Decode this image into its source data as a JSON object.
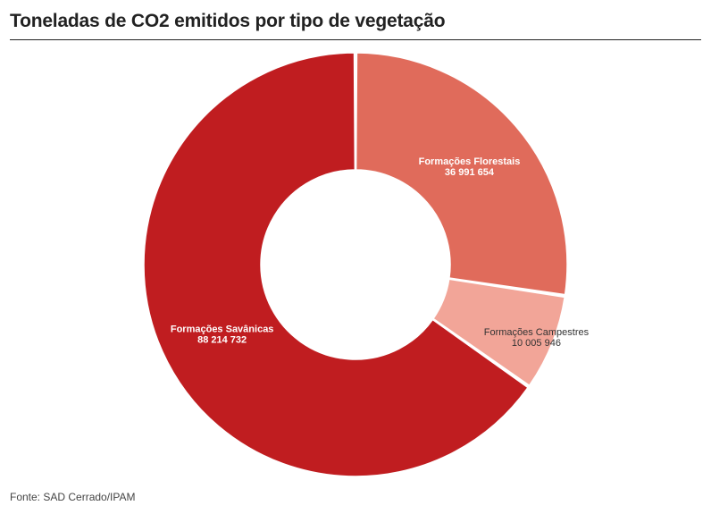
{
  "title": "Toneladas de CO2 emitidos por tipo de vegetação",
  "source": "Fonte: SAD Cerrado/IPAM",
  "chart_data": {
    "type": "pie",
    "donut": true,
    "title": "Toneladas de CO2 emitidos por tipo de vegetação",
    "slices": [
      {
        "name": "Formações Florestais",
        "value": 36991654,
        "value_label": "36 991 654",
        "color": "#e06b5b",
        "label_color": "#ffffff"
      },
      {
        "name": "Formações Campestres",
        "value": 10005946,
        "value_label": "10 005 946",
        "color": "#f2a598",
        "label_color": "#333333"
      },
      {
        "name": "Formações Savânicas",
        "value": 88214732,
        "value_label": "88 214 732",
        "color": "#c01d20",
        "label_color": "#ffffff"
      }
    ],
    "legend": "none"
  }
}
